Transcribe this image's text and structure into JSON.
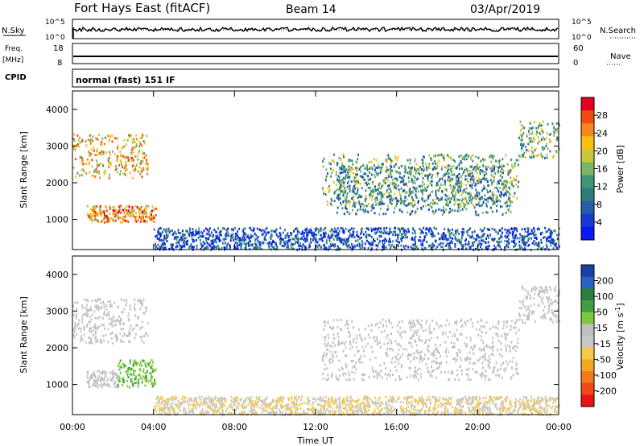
{
  "header": {
    "station": "Fort Hays East (fitACF)",
    "beam": "Beam 14",
    "date": "03/Apr/2019"
  },
  "top_panels": {
    "nsky_label": "N.Sky",
    "nsearch_label": "N.Search",
    "noise_ticks": [
      "10^5",
      "10^0"
    ],
    "freq_label": "Freq.",
    "freq_unit": "[MHz]",
    "freq_ticks": [
      "18",
      "8"
    ],
    "nave_label": "Nave",
    "nave_ticks": [
      "60",
      "0"
    ],
    "cpid_label": "CPID",
    "cpid_text": "normal (fast) 151 IF"
  },
  "colorbars": {
    "power": {
      "label": "Power [dB]",
      "ticks": [
        "28",
        "24",
        "20",
        "16",
        "12",
        "8",
        "4"
      ],
      "colors": [
        "#e3001b",
        "#f24a12",
        "#f7861c",
        "#fbbd14",
        "#c9c83c",
        "#79b66b",
        "#3d9479",
        "#2b7e7c",
        "#265da8",
        "#1838d5",
        "#0a1af2"
      ]
    },
    "velocity": {
      "label": "Velocity [m s",
      "label_exp": "-1",
      "label_end": "]",
      "ticks": [
        "200",
        "100",
        "50",
        "15",
        "-15",
        "-50",
        "-100",
        "-200"
      ],
      "colors": [
        "#1b3ea8",
        "#2a62c2",
        "#2e7d3d",
        "#3f9e3f",
        "#7cc83f",
        "#bfbfbf",
        "#c8c8c8",
        "#f7c94a",
        "#f4a81f",
        "#f27a1c",
        "#ef4a18",
        "#e81313"
      ]
    }
  },
  "chart_data": [
    {
      "type": "heatmap",
      "title": "Power",
      "xlabel": "Time UT",
      "ylabel": "Slant Range [km]",
      "x_ticks": [
        "00:00",
        "04:00",
        "08:00",
        "12:00",
        "16:00",
        "20:00",
        "00:00"
      ],
      "y_ticks": [
        1000,
        2000,
        3000,
        4000
      ],
      "xlim": [
        0,
        24
      ],
      "ylim": [
        180,
        4500
      ],
      "colorbar": "Power [dB]",
      "clim": [
        0,
        30
      ],
      "features": [
        {
          "t_start": 0.0,
          "t_end": 3.7,
          "range_min": 2150,
          "range_max": 3350,
          "value_dB": 20
        },
        {
          "t_start": 0.7,
          "t_end": 4.1,
          "range_min": 950,
          "range_max": 1400,
          "value_dB": 22
        },
        {
          "t_start": 12.3,
          "t_end": 22.0,
          "range_min": 1400,
          "range_max": 2800,
          "value_dB": 14
        },
        {
          "t_start": 13.0,
          "t_end": 21.6,
          "range_min": 1150,
          "range_max": 2500,
          "value_dB": 10
        },
        {
          "t_start": 22.0,
          "t_end": 24.0,
          "range_min": 2700,
          "range_max": 3700,
          "value_dB": 14
        },
        {
          "t_start": 4.0,
          "t_end": 24.0,
          "range_min": 200,
          "range_max": 800,
          "value_dB": 6
        }
      ]
    },
    {
      "type": "heatmap",
      "title": "Velocity",
      "xlabel": "Time UT",
      "ylabel": "Slant Range [km]",
      "x_ticks": [
        "00:00",
        "04:00",
        "08:00",
        "12:00",
        "16:00",
        "20:00",
        "00:00"
      ],
      "y_ticks": [
        1000,
        2000,
        3000,
        4000
      ],
      "xlim": [
        0,
        24
      ],
      "ylim": [
        180,
        4500
      ],
      "colorbar": "Velocity [m s^-1]",
      "clim": [
        -200,
        200
      ],
      "features": [
        {
          "t_start": 0.0,
          "t_end": 3.7,
          "range_min": 2150,
          "range_max": 3350,
          "value_mps": 0
        },
        {
          "t_start": 0.7,
          "t_end": 2.2,
          "range_min": 950,
          "range_max": 1400,
          "value_mps": 0
        },
        {
          "t_start": 2.2,
          "t_end": 4.1,
          "range_min": 950,
          "range_max": 1700,
          "value_mps": 60
        },
        {
          "t_start": 12.3,
          "t_end": 22.0,
          "range_min": 1150,
          "range_max": 2800,
          "value_mps": 0
        },
        {
          "t_start": 22.0,
          "t_end": 24.0,
          "range_min": 2700,
          "range_max": 3700,
          "value_mps": 0
        },
        {
          "t_start": 4.0,
          "t_end": 24.0,
          "range_min": 200,
          "range_max": 700,
          "value_mps": -30
        }
      ]
    }
  ]
}
